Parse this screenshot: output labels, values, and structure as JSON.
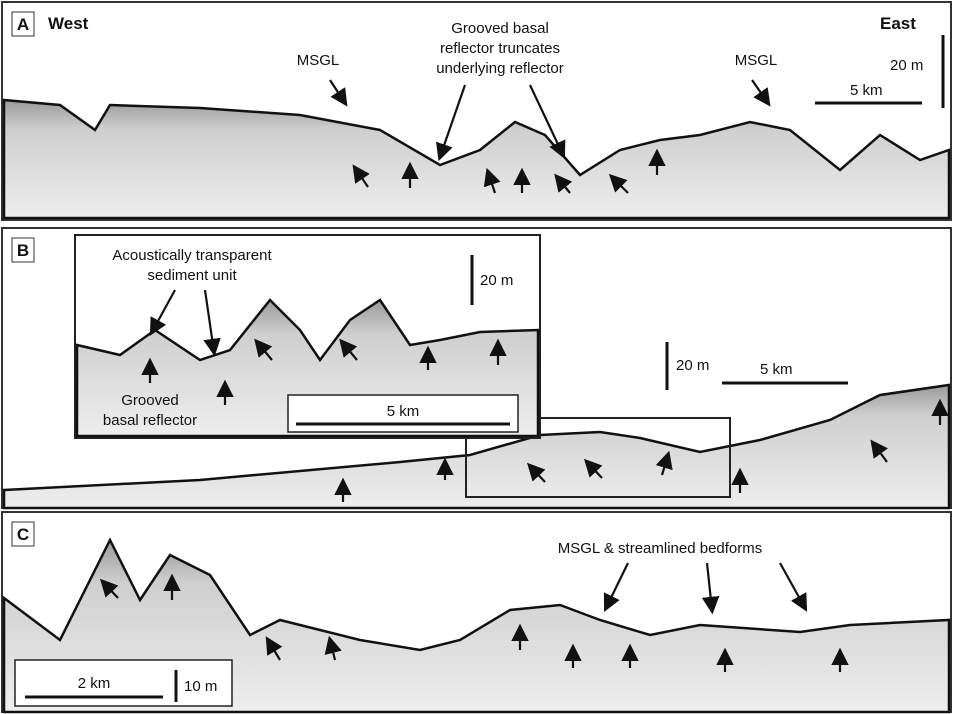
{
  "panels": [
    {
      "label": "A",
      "west": "West",
      "east": "East",
      "annotations": [
        {
          "lines": [
            "MSGL"
          ]
        },
        {
          "lines": [
            "Grooved basal",
            "reflector truncates",
            "underlying reflector"
          ]
        },
        {
          "lines": [
            "MSGL"
          ]
        }
      ],
      "scale": {
        "vertical": "20 m",
        "horizontal": "5 km"
      }
    },
    {
      "label": "B",
      "annotations": [
        {
          "lines": [
            "Acoustically transparent",
            "sediment unit"
          ]
        },
        {
          "lines": [
            "Grooved",
            "basal reflector"
          ]
        }
      ],
      "inset_scale": {
        "vertical": "20 m",
        "horizontal": "5 km"
      },
      "scale": {
        "vertical": "20 m",
        "horizontal": "5 km"
      }
    },
    {
      "label": "C",
      "annotations": [
        {
          "lines": [
            "MSGL & streamlined bedforms"
          ]
        }
      ],
      "scale": {
        "horizontal": "2 km",
        "vertical": "10 m"
      }
    }
  ]
}
